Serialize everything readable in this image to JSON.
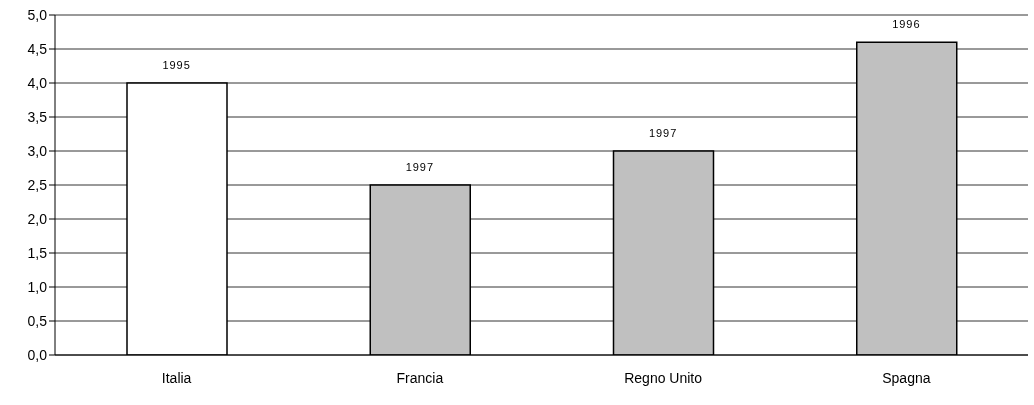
{
  "chart_data": {
    "type": "bar",
    "categories": [
      "Italia",
      "Francia",
      "Regno Unito",
      "Spagna"
    ],
    "values": [
      4.0,
      2.5,
      3.0,
      4.6
    ],
    "colors": [
      "#ffffff",
      "#c0c0c0",
      "#c0c0c0",
      "#c0c0c0"
    ],
    "annotations": [
      {
        "text": "1995",
        "x": "Italia",
        "y": 4.0
      },
      {
        "text": "1997",
        "x": "Francia",
        "y": 2.5
      },
      {
        "text": "1997",
        "x": "Regno Unito",
        "y": 3.0
      },
      {
        "text": "1996",
        "x": "Spagna",
        "y": 4.6
      }
    ],
    "ylim": [
      0,
      5
    ],
    "yticks": [
      {
        "value": 0,
        "label": "0,0"
      },
      {
        "value": 0.5,
        "label": "0,5"
      },
      {
        "value": 1,
        "label": "1,0"
      },
      {
        "value": 1.5,
        "label": "1,5"
      },
      {
        "value": 2,
        "label": "2,0"
      },
      {
        "value": 2.5,
        "label": "2,5"
      },
      {
        "value": 3,
        "label": "3,0"
      },
      {
        "value": 3.5,
        "label": "3,5"
      },
      {
        "value": 4,
        "label": "4,0"
      },
      {
        "value": 4.5,
        "label": "4,5"
      },
      {
        "value": 5,
        "label": "5,0"
      }
    ],
    "grid": "y",
    "legend": false
  }
}
